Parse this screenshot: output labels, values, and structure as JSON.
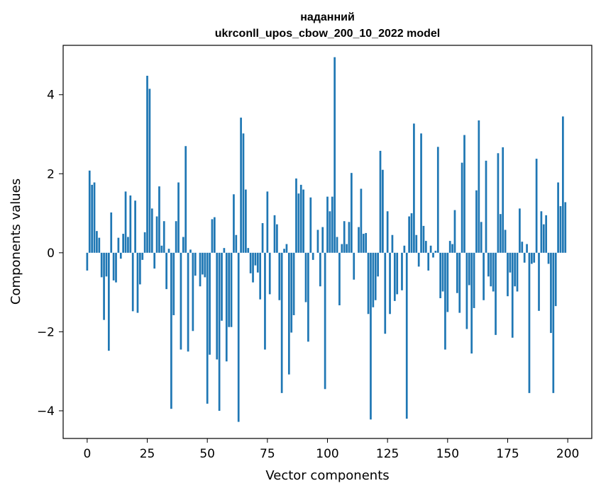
{
  "chart_data": {
    "type": "bar",
    "title_lines": [
      "наданний",
      "ukrconll_upos_cbow_200_10_2022 model"
    ],
    "xlabel": "Vector components",
    "ylabel": "Components values",
    "xlim": [
      -10,
      210
    ],
    "ylim": [
      -4.7,
      5.25
    ],
    "x_ticks": [
      0,
      25,
      50,
      75,
      100,
      125,
      150,
      175,
      200
    ],
    "y_ticks": [
      -4,
      -2,
      0,
      2,
      4
    ],
    "y_tick_labels": [
      "−4",
      "−2",
      "0",
      "2",
      "4"
    ],
    "bar_color": "#1f77b4",
    "grid": false,
    "x": [
      0,
      1,
      2,
      3,
      4,
      5,
      6,
      7,
      8,
      9,
      10,
      11,
      12,
      13,
      14,
      15,
      16,
      17,
      18,
      19,
      20,
      21,
      22,
      23,
      24,
      25,
      26,
      27,
      28,
      29,
      30,
      31,
      32,
      33,
      34,
      35,
      36,
      37,
      38,
      39,
      40,
      41,
      42,
      43,
      44,
      45,
      46,
      47,
      48,
      49,
      50,
      51,
      52,
      53,
      54,
      55,
      56,
      57,
      58,
      59,
      60,
      61,
      62,
      63,
      64,
      65,
      66,
      67,
      68,
      69,
      70,
      71,
      72,
      73,
      74,
      75,
      76,
      77,
      78,
      79,
      80,
      81,
      82,
      83,
      84,
      85,
      86,
      87,
      88,
      89,
      90,
      91,
      92,
      93,
      94,
      95,
      96,
      97,
      98,
      99,
      100,
      101,
      102,
      103,
      104,
      105,
      106,
      107,
      108,
      109,
      110,
      111,
      112,
      113,
      114,
      115,
      116,
      117,
      118,
      119,
      120,
      121,
      122,
      123,
      124,
      125,
      126,
      127,
      128,
      129,
      130,
      131,
      132,
      133,
      134,
      135,
      136,
      137,
      138,
      139,
      140,
      141,
      142,
      143,
      144,
      145,
      146,
      147,
      148,
      149,
      150,
      151,
      152,
      153,
      154,
      155,
      156,
      157,
      158,
      159,
      160,
      161,
      162,
      163,
      164,
      165,
      166,
      167,
      168,
      169,
      170,
      171,
      172,
      173,
      174,
      175,
      176,
      177,
      178,
      179,
      180,
      181,
      182,
      183,
      184,
      185,
      186,
      187,
      188,
      189,
      190,
      191,
      192,
      193,
      194,
      195,
      196,
      197,
      198,
      199
    ],
    "values": [
      -0.45,
      2.08,
      1.72,
      1.78,
      0.55,
      0.38,
      -0.62,
      -1.7,
      -0.6,
      -2.48,
      1.02,
      -0.7,
      -0.75,
      0.38,
      -0.15,
      0.48,
      1.55,
      0.4,
      1.45,
      -1.48,
      1.32,
      -1.52,
      -0.8,
      -0.18,
      0.52,
      4.48,
      4.15,
      1.12,
      -0.4,
      0.92,
      1.68,
      0.18,
      0.8,
      -0.92,
      0.1,
      -3.95,
      -1.58,
      0.8,
      1.78,
      -2.45,
      0.4,
      2.7,
      -2.5,
      0.08,
      -1.98,
      -0.58,
      0.0,
      -0.85,
      -0.55,
      -0.62,
      -3.82,
      -2.58,
      0.85,
      0.9,
      -2.7,
      -4.0,
      -1.72,
      0.12,
      -2.75,
      -1.88,
      -1.88,
      1.48,
      0.45,
      -4.28,
      3.42,
      3.02,
      1.6,
      0.12,
      -0.52,
      -0.75,
      -0.32,
      -0.5,
      -1.18,
      0.75,
      -2.45,
      1.55,
      -1.05,
      0.0,
      0.95,
      0.72,
      -1.2,
      -3.55,
      0.1,
      0.22,
      -3.08,
      -2.02,
      -1.58,
      1.88,
      1.5,
      1.72,
      1.6,
      -1.25,
      -2.25,
      1.4,
      -0.18,
      0.0,
      0.58,
      -0.85,
      0.65,
      -3.45,
      1.42,
      1.05,
      1.42,
      4.95,
      0.4,
      -1.33,
      0.22,
      0.8,
      0.22,
      0.78,
      2.02,
      -0.68,
      0.0,
      0.65,
      1.62,
      0.48,
      0.5,
      -1.55,
      -4.22,
      -1.38,
      -1.2,
      -0.6,
      2.58,
      2.1,
      -2.05,
      1.05,
      -1.55,
      0.45,
      -1.22,
      -1.05,
      0.0,
      -0.95,
      0.18,
      -4.2,
      0.92,
      1.0,
      3.27,
      0.45,
      -0.35,
      3.02,
      0.68,
      0.3,
      -0.45,
      0.18,
      -0.12,
      0.05,
      2.68,
      -1.15,
      -0.98,
      -2.45,
      -1.5,
      0.3,
      0.22,
      1.08,
      -1.02,
      -1.52,
      2.28,
      2.98,
      -1.93,
      -0.82,
      -2.55,
      -1.4,
      1.58,
      3.35,
      0.78,
      -1.2,
      2.33,
      -0.6,
      -0.85,
      -0.98,
      -2.08,
      2.52,
      0.98,
      2.67,
      0.58,
      -1.1,
      -0.5,
      -2.15,
      -0.85,
      -0.98,
      1.12,
      0.28,
      -0.25,
      0.22,
      -3.55,
      -0.28,
      -0.25,
      2.38,
      -1.47,
      1.05,
      0.72,
      0.95,
      -0.28,
      -2.03,
      -3.55,
      -1.35,
      1.78,
      1.18,
      3.45,
      1.28
    ]
  }
}
